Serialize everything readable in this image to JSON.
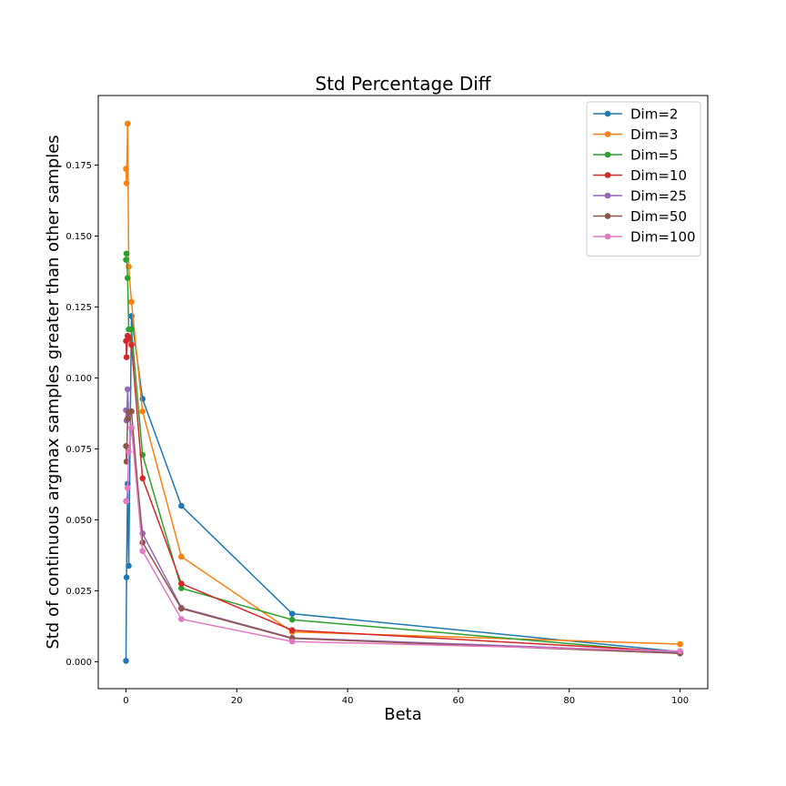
{
  "chart_data": {
    "type": "line",
    "title": "Std Percentage Diff",
    "xlabel": "Beta",
    "ylabel": "Std of continuous argmax samples greater than other samples",
    "xlim": [
      -5,
      105
    ],
    "ylim": [
      -0.0095,
      0.1995
    ],
    "x_ticks": [
      "0",
      "20",
      "40",
      "60",
      "80",
      "100"
    ],
    "y_ticks": [
      "0.000",
      "0.025",
      "0.050",
      "0.075",
      "0.100",
      "0.125",
      "0.150",
      "0.175"
    ],
    "grid": false,
    "legend_position": "top-right",
    "x": [
      0.01,
      0.1,
      0.3,
      0.5,
      1,
      3,
      10,
      30,
      100
    ],
    "series": [
      {
        "name": "Dim=2",
        "color": "#1f77b4",
        "values": [
          0.0003,
          0.0297,
          0.0627,
          0.0338,
          0.1218,
          0.0926,
          0.0549,
          0.0169,
          0.0035
        ]
      },
      {
        "name": "Dim=3",
        "color": "#ff7f0e",
        "values": [
          0.1737,
          0.1686,
          0.1896,
          0.1392,
          0.1268,
          0.0882,
          0.037,
          0.0105,
          0.0062
        ]
      },
      {
        "name": "Dim=5",
        "color": "#2ca02c",
        "values": [
          0.1416,
          0.1438,
          0.1352,
          0.1171,
          0.1172,
          0.0729,
          0.0259,
          0.0148,
          0.003
        ]
      },
      {
        "name": "Dim=10",
        "color": "#d62728",
        "values": [
          0.113,
          0.1073,
          0.1148,
          0.1139,
          0.1117,
          0.0646,
          0.0275,
          0.0111,
          0.0035
        ]
      },
      {
        "name": "Dim=25",
        "color": "#9467bd",
        "values": [
          0.0886,
          0.085,
          0.096,
          0.087,
          0.0823,
          0.0452,
          0.019,
          0.0084,
          0.0034
        ]
      },
      {
        "name": "Dim=50",
        "color": "#8c564b",
        "values": [
          0.076,
          0.0705,
          0.0857,
          0.088,
          0.0882,
          0.042,
          0.0187,
          0.0082,
          0.0029
        ]
      },
      {
        "name": "Dim=100",
        "color": "#e377c2",
        "values": [
          0.0566,
          0.0566,
          0.0612,
          0.074,
          0.0825,
          0.039,
          0.015,
          0.0071,
          0.0037
        ]
      }
    ]
  }
}
